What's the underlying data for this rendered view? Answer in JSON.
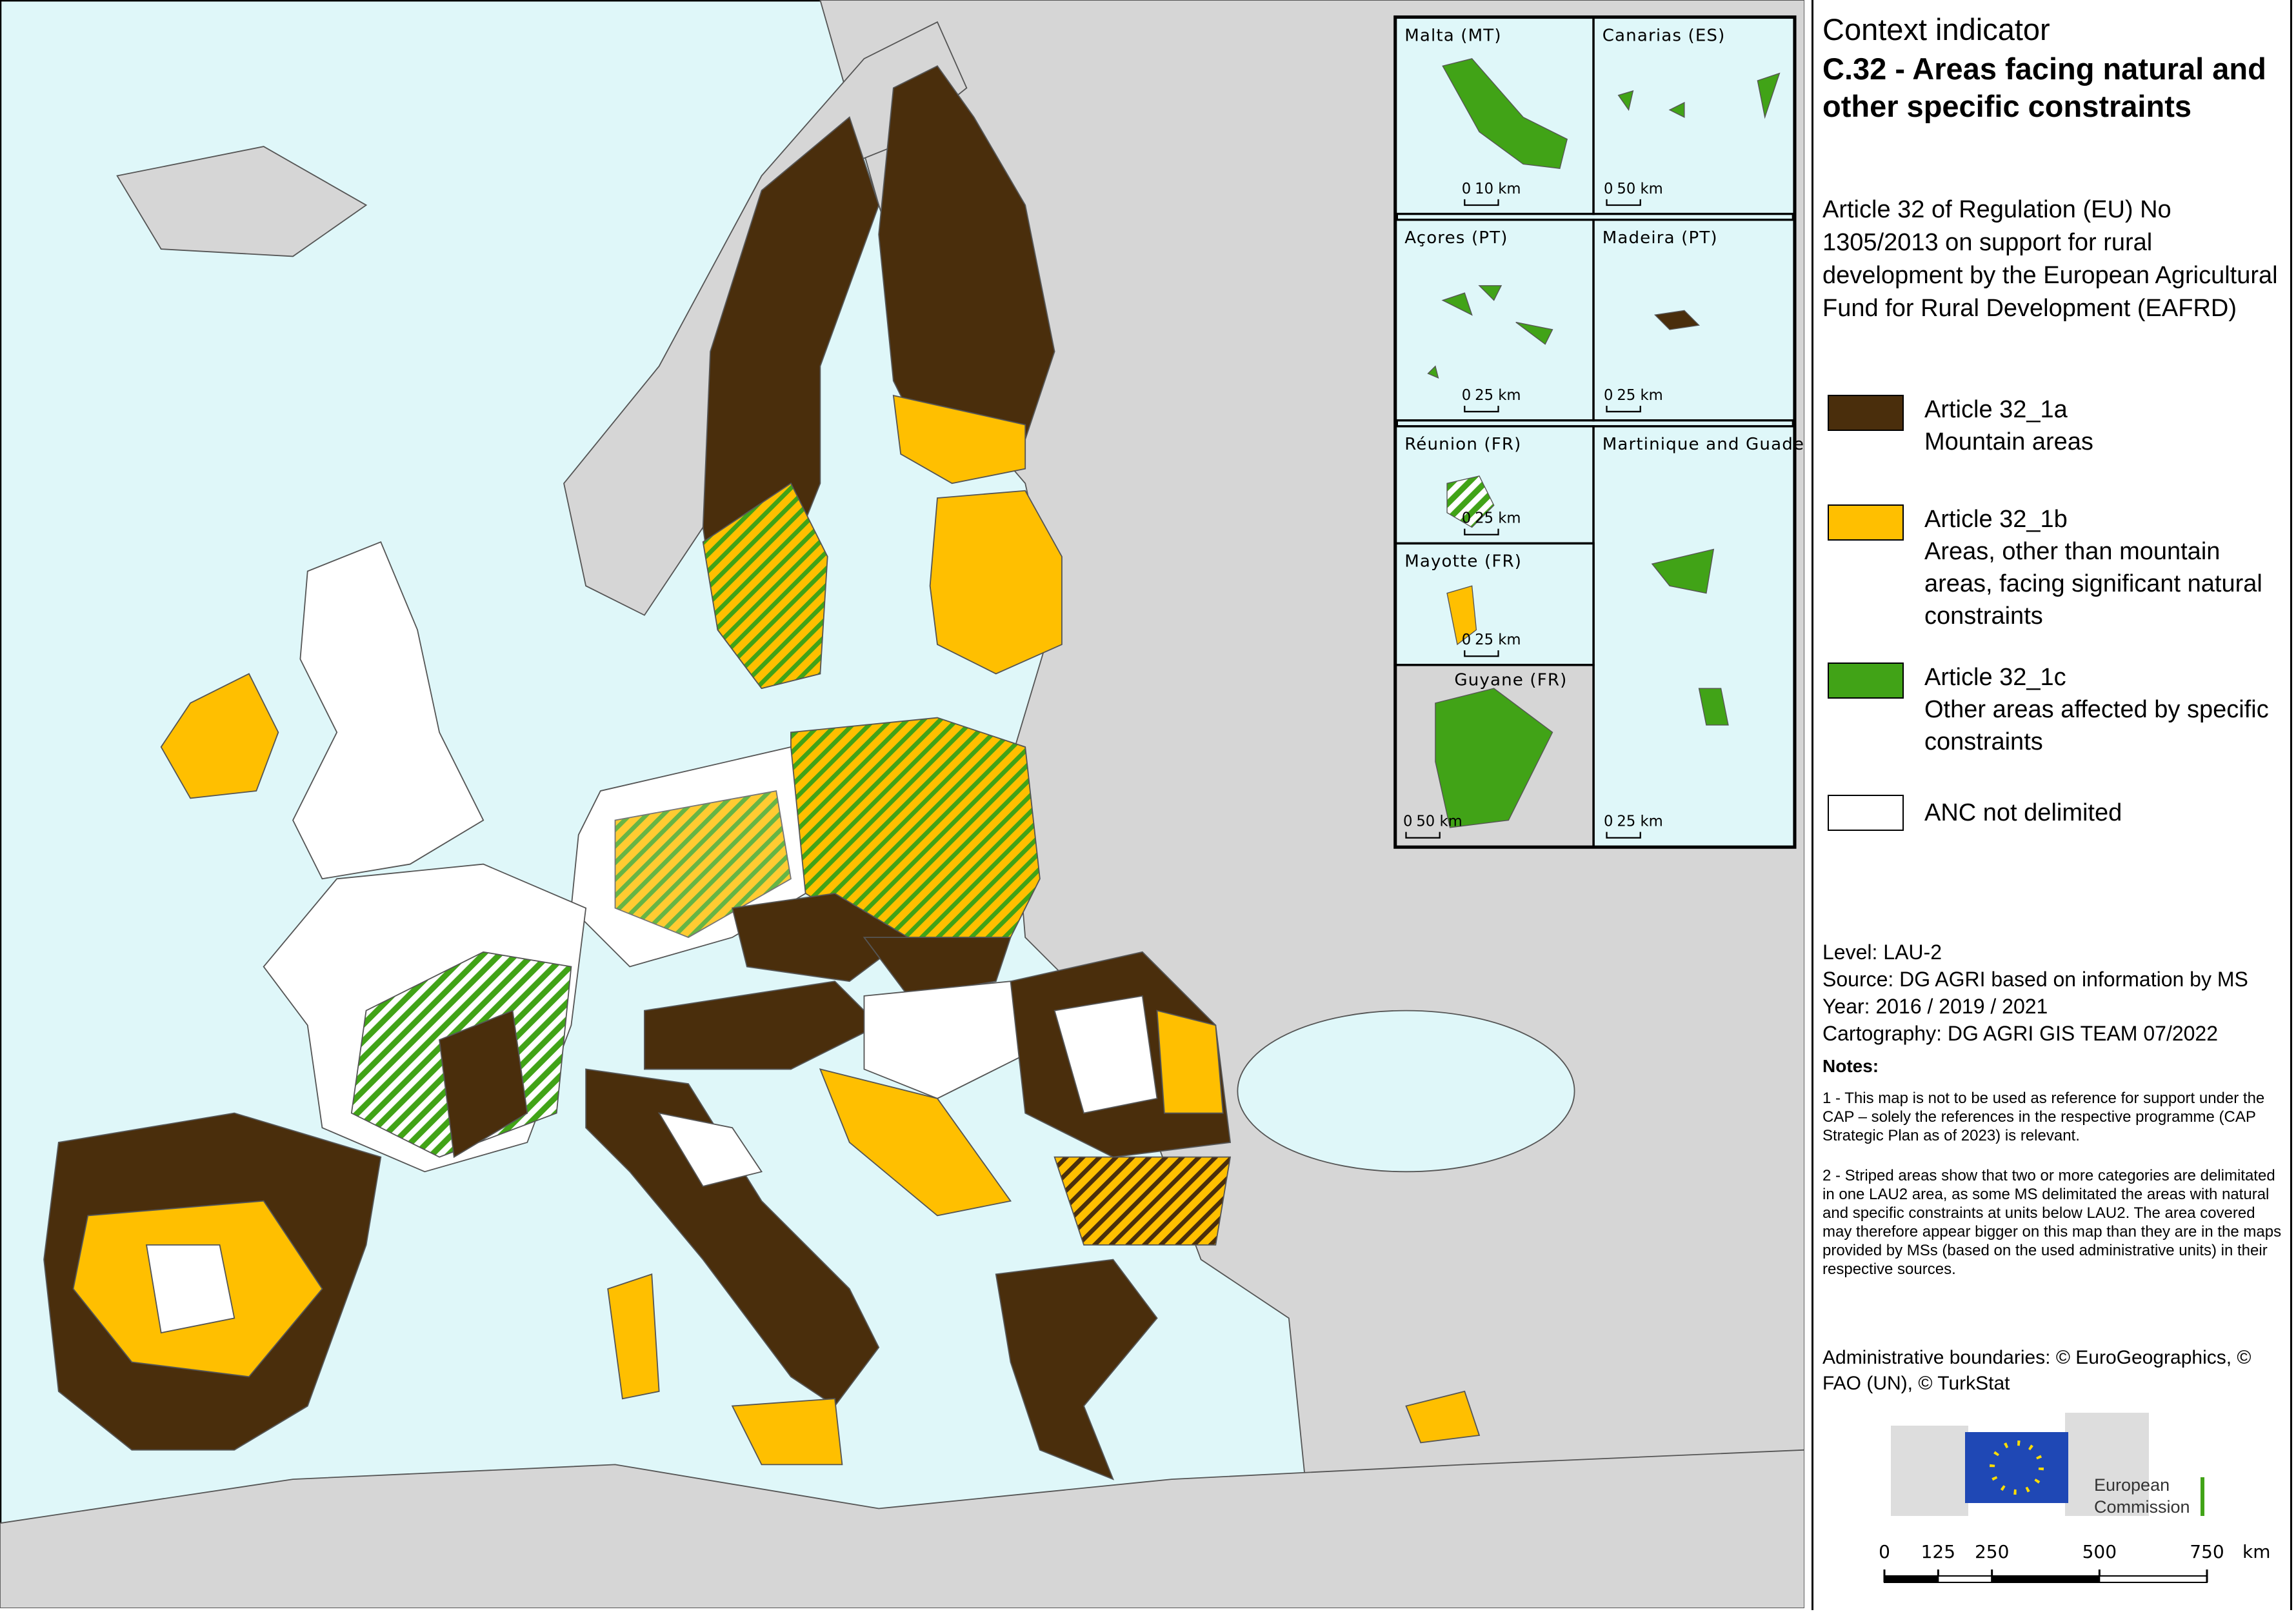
{
  "title": {
    "line1": "Context indicator",
    "line2": "C.32 - Areas facing natural and other specific constraints"
  },
  "subtitle": "Article 32 of Regulation (EU) No 1305/2013 on support for rural development by the European Agricultural Fund for Rural Development (EAFRD)",
  "legend": [
    {
      "label": "Article 32_1a",
      "description": "Mountain areas",
      "color": "#4a2e0c"
    },
    {
      "label": "Article 32_1b",
      "description": "Areas, other than mountain areas, facing significant natural constraints",
      "color": "#ffbf00"
    },
    {
      "label": "Article 32_1c",
      "description": "Other areas affected by specific constraints",
      "color": "#41a317"
    },
    {
      "label": "ANC not delimited",
      "color": "#ffffff"
    }
  ],
  "metadata": [
    "Level: LAU-2",
    "Source: DG AGRI based on information by MS",
    "Year: 2016 / 2019 / 2021",
    "Cartography: DG AGRI GIS TEAM 07/2022"
  ],
  "notes": {
    "heading": "Notes:",
    "items": [
      "1 - This map is not to be used as reference for support under the CAP – solely the references in the respective programme (CAP Strategic Plan as of 2023) is relevant.",
      "2 - Striped areas show that two or more categories are delimitated in one LAU2 area, as some MS delimitated the areas with natural and specific constraints at units below LAU2. The area covered may therefore appear bigger on this map than they are in the maps provided by MSs (based on the used administrative units) in their respective sources."
    ]
  },
  "copyright": "Administrative boundaries: © EuroGeographics, © FAO (UN), © TurkStat",
  "logo": "European Commission",
  "scale_bar": {
    "ticks": [
      0,
      125,
      250,
      500,
      750
    ],
    "unit": "km"
  },
  "insets": [
    {
      "name": "Malta (MT)",
      "scale_zero": "0",
      "scale_length": "10 km"
    },
    {
      "name": "Canarias (ES)",
      "scale_zero": "0",
      "scale_length": "50 km"
    },
    {
      "name": "Açores (PT)",
      "scale_zero": "0",
      "scale_length": "25 km"
    },
    {
      "name": "Madeira (PT)",
      "scale_zero": "0",
      "scale_length": "25 km"
    },
    {
      "name": "Réunion (FR)",
      "scale_zero": "0",
      "scale_length": "25 km"
    },
    {
      "name": "Martinique and Guadeloupe(FR)",
      "scale_zero": "0",
      "scale_length": "25 km"
    },
    {
      "name": "Mayotte (FR)",
      "scale_zero": "0",
      "scale_length": "25 km"
    },
    {
      "name": "Guyane (FR)",
      "scale_zero": "0",
      "scale_length": "50 km"
    }
  ]
}
